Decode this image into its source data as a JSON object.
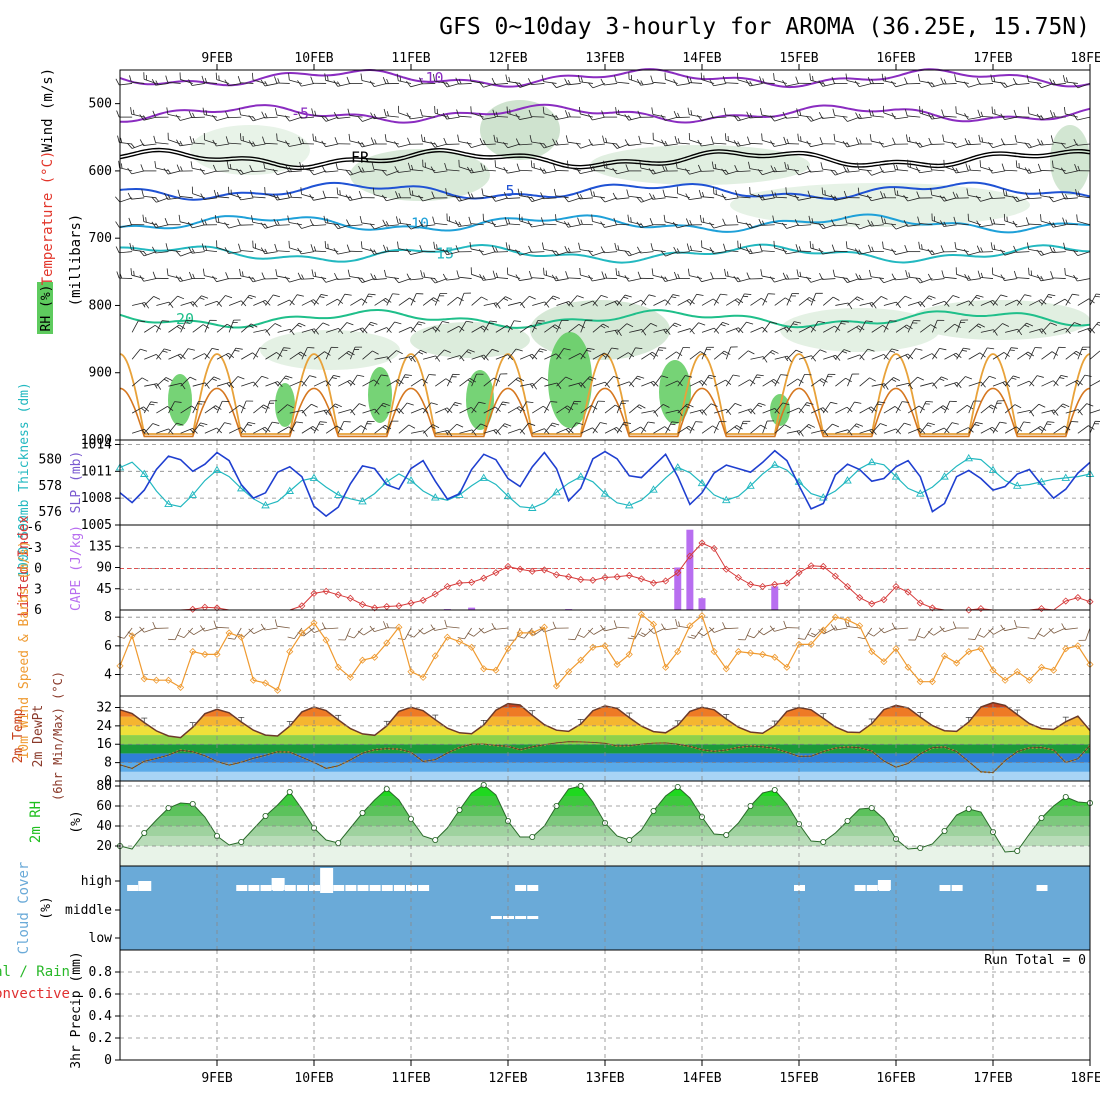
{
  "title": "GFS 0~10day 3-hourly for AROMA (36.25E, 15.75N)",
  "dates": [
    "9FEB",
    "10FEB",
    "11FEB",
    "12FEB",
    "13FEB",
    "14FEB",
    "15FEB",
    "16FEB",
    "17FEB",
    "18FEB"
  ],
  "colors": {
    "temp_label": "#e2362b",
    "wind_label": "#000000",
    "rh_green": "#5fcf5f",
    "slp": "#1f3fd0",
    "thickness": "#22b8c0",
    "cape": "#b86ef0",
    "li": "#d63a3a",
    "wind10": "#ef9a30",
    "rh2m": "#1fbf1f",
    "cloud": "#6aaad8"
  },
  "labels": {
    "upper_rh": "RH (%)",
    "upper_temp": "Temperature (°C)",
    "upper_wind": "Wind (m/s)",
    "upper_unit": "(millibars)",
    "thickness": "1000-500mb Thickness (dm)",
    "slp": "SLP (mb)",
    "li": "Lifted Index",
    "cape": "CAPE (J/kg)",
    "wind10": "10m Wind Speed & Barbs (m/s)",
    "temp2m_a": "2m Temp",
    "temp2m_b": "2m DewPt",
    "temp2m_c": "(6hr Min/Max) (°C)",
    "rh2m": "2m RH",
    "rh2m_unit": "(%)",
    "cloud": "Cloud Cover",
    "cloud_unit": "(%)",
    "precip_a": "Total / Rain",
    "precip_b": "Convective",
    "precip_c": "3hr Precip (mm)",
    "run_total": "Run Total = 0"
  },
  "chart_data": [
    {
      "panel": "upper_air",
      "type": "heatmap",
      "y_axis": {
        "label": "millibars",
        "ticks": [
          500,
          600,
          700,
          800,
          900,
          1000
        ],
        "range": [
          1000,
          450
        ]
      },
      "temperature_contours": [
        {
          "value": "-10",
          "pressure": 462
        },
        {
          "value": "-5",
          "pressure": 515
        },
        {
          "value": "FR",
          "pressure": 580
        },
        {
          "value": "5",
          "pressure": 630
        },
        {
          "value": "10",
          "pressure": 678
        },
        {
          "value": "15",
          "pressure": 723
        },
        {
          "value": "20",
          "pressure": 820
        }
      ]
    },
    {
      "panel": "thickness_slp",
      "type": "line",
      "x_labels": [
        "9FEB",
        "10FEB",
        "11FEB",
        "12FEB",
        "13FEB",
        "14FEB",
        "15FEB",
        "16FEB",
        "17FEB",
        "18FEB"
      ],
      "thickness": {
        "name": "1000-500mb Thickness (dm)",
        "ticks": [
          576,
          578,
          580
        ],
        "range": [
          575,
          581.5
        ],
        "values": [
          579.4,
          579.8,
          578.9,
          577.6,
          576.6,
          576.4,
          577.3,
          578.4,
          579.2,
          578.7,
          577.8,
          577.0,
          576.5,
          576.8,
          577.6,
          578.4,
          578.6,
          577.9,
          577.3,
          577.0,
          576.8,
          577.4,
          578.3,
          578.9,
          578.4,
          577.6,
          577.1,
          576.9,
          577.3,
          578.0,
          578.6,
          578.1,
          577.2,
          576.4,
          576.3,
          576.7,
          577.5,
          578.2,
          578.7,
          578.3,
          577.4,
          576.7,
          576.5,
          576.9,
          577.7,
          578.6,
          579.4,
          579.0,
          578.2,
          577.3,
          576.9,
          577.2,
          578.0,
          578.9,
          579.6,
          579.2,
          578.3,
          577.4,
          577.1,
          577.6,
          578.4,
          579.3,
          579.8,
          579.6,
          578.7,
          577.8,
          577.4,
          577.9,
          578.7,
          579.5,
          580.1,
          580.0,
          579.2,
          578.4,
          578.0,
          578.1,
          578.3,
          578.5,
          578.6,
          578.7,
          578.9
        ]
      },
      "slp": {
        "name": "SLP (mb)",
        "ticks": [
          1005,
          1008,
          1011,
          1014
        ],
        "range": [
          1005,
          1014.5
        ],
        "values": [
          1008.6,
          1007.5,
          1008.9,
          1011.2,
          1012.7,
          1012.3,
          1011.0,
          1011.8,
          1013.1,
          1012.2,
          1009.5,
          1008.0,
          1008.6,
          1010.9,
          1011.5,
          1010.4,
          1007.1,
          1006.0,
          1007.0,
          1009.6,
          1011.6,
          1011.3,
          1009.5,
          1009.0,
          1011.3,
          1012.2,
          1009.9,
          1007.9,
          1008.5,
          1011.2,
          1012.9,
          1012.3,
          1010.2,
          1009.3,
          1011.5,
          1013.1,
          1011.3,
          1007.7,
          1009.1,
          1012.4,
          1013.2,
          1012.4,
          1010.5,
          1010.3,
          1011.6,
          1012.9,
          1010.4,
          1007.3,
          1008.6,
          1010.8,
          1011.7,
          1011.3,
          1010.9,
          1012.0,
          1013.3,
          1012.2,
          1009.4,
          1006.8,
          1007.4,
          1010.6,
          1011.8,
          1011.2,
          1009.9,
          1010.2,
          1011.5,
          1012.2,
          1010.4,
          1006.5,
          1007.4,
          1010.4,
          1011.1,
          1010.2,
          1008.9,
          1009.3,
          1010.7,
          1011.2,
          1009.5,
          1008.0,
          1009.0,
          1010.8,
          1012.0
        ]
      }
    },
    {
      "panel": "li_cape",
      "type": "bar",
      "lifted_index": {
        "name": "Lifted Index",
        "ticks": [
          6,
          3,
          0,
          -3,
          -6
        ],
        "range": [
          6,
          -6.3
        ],
        "values": [
          6.4,
          6.5,
          6.4,
          6.2,
          6.6,
          6.8,
          5.9,
          5.6,
          5.7,
          6.1,
          6.4,
          6.3,
          6.2,
          6.5,
          6.6,
          5.4,
          3.6,
          3.3,
          3.8,
          4.3,
          5.2,
          5.7,
          5.5,
          5.4,
          5.0,
          4.6,
          3.7,
          2.6,
          2.1,
          2.0,
          1.4,
          0.6,
          -0.3,
          0.1,
          0.4,
          0.2,
          0.9,
          1.2,
          1.6,
          1.7,
          1.3,
          1.2,
          1.0,
          1.5,
          2.1,
          1.8,
          0.6,
          -1.8,
          -3.7,
          -2.9,
          0.1,
          1.3,
          2.3,
          2.6,
          2.3,
          2.1,
          0.6,
          -0.4,
          -0.3,
          1.1,
          2.6,
          4.2,
          5.1,
          4.5,
          2.6,
          3.4,
          5.0,
          5.7,
          6.3,
          6.2,
          6.0,
          5.8,
          6.2,
          6.3,
          6.4,
          6.4,
          5.8,
          6.2,
          4.7,
          4.2,
          4.8
        ]
      },
      "cape": {
        "name": "CAPE (J/kg)",
        "ticks": [
          45,
          90,
          135
        ],
        "range": [
          0,
          180
        ],
        "bars": [
          {
            "index": 27,
            "value": 2
          },
          {
            "index": 29,
            "value": 5
          },
          {
            "index": 37,
            "value": 2
          },
          {
            "index": 46,
            "value": 90
          },
          {
            "index": 47,
            "value": 170
          },
          {
            "index": 48,
            "value": 25
          },
          {
            "index": 54,
            "value": 50
          }
        ]
      }
    },
    {
      "panel": "wind10m",
      "type": "line",
      "y_axis": {
        "label": "(m/s)",
        "ticks": [
          4,
          6,
          8
        ],
        "range": [
          2.5,
          8.5
        ]
      },
      "values": [
        4.6,
        6.7,
        3.7,
        3.6,
        3.6,
        3.1,
        5.6,
        5.4,
        5.4,
        6.9,
        6.6,
        3.6,
        3.4,
        2.9,
        5.6,
        6.9,
        7.6,
        6.4,
        4.5,
        3.8,
        5.0,
        5.2,
        6.2,
        7.3,
        4.2,
        3.8,
        5.3,
        6.6,
        6.3,
        5.9,
        4.4,
        4.3,
        5.8,
        6.9,
        6.9,
        7.3,
        3.2,
        4.2,
        5.0,
        5.9,
        6.0,
        4.7,
        5.4,
        8.2,
        7.5,
        4.5,
        5.6,
        7.4,
        8.1,
        5.6,
        4.4,
        5.6,
        5.5,
        5.4,
        5.2,
        4.5,
        6.1,
        6.1,
        7.1,
        8.0,
        7.8,
        7.4,
        5.6,
        4.9,
        5.8,
        4.5,
        3.5,
        3.5,
        5.3,
        4.8,
        5.6,
        5.8,
        4.3,
        3.6,
        4.2,
        3.6,
        4.5,
        4.3,
        5.8,
        6.0,
        4.7
      ]
    },
    {
      "panel": "temp2m",
      "type": "area",
      "y_axis": {
        "ticks": [
          0,
          8,
          16,
          24,
          32
        ],
        "range": [
          0,
          37
        ]
      },
      "temperature": [
        31.0,
        29.4,
        25.4,
        21.8,
        19.6,
        18.9,
        23.4,
        29.3,
        31.2,
        29.7,
        25.7,
        22.1,
        20.0,
        19.6,
        23.9,
        30.1,
        32.2,
        30.7,
        26.6,
        22.8,
        20.5,
        19.9,
        24.0,
        30.3,
        32.1,
        30.6,
        26.7,
        23.0,
        21.0,
        20.6,
        24.4,
        30.8,
        33.7,
        33.1,
        28.6,
        24.5,
        22.1,
        21.6,
        24.8,
        30.6,
        32.7,
        31.6,
        27.6,
        23.9,
        21.5,
        21.0,
        24.2,
        30.3,
        32.1,
        31.0,
        27.0,
        23.4,
        21.3,
        20.8,
        24.1,
        30.3,
        32.0,
        31.0,
        27.3,
        23.5,
        21.3,
        21.1,
        25.0,
        31.1,
        32.9,
        31.8,
        27.8,
        24.1,
        21.9,
        21.6,
        25.7,
        32.2,
        34.1,
        32.9,
        28.9,
        25.0,
        22.8,
        22.4,
        25.8,
        28.2,
        22.0
      ],
      "dewpoint": [
        7.0,
        5.5,
        8.6,
        9.8,
        11.3,
        13.4,
        12.7,
        11.0,
        8.5,
        6.9,
        8.2,
        9.9,
        11.2,
        12.7,
        12.6,
        10.3,
        8.1,
        5.5,
        6.6,
        9.2,
        12.1,
        13.6,
        14.1,
        13.9,
        12.5,
        8.5,
        9.3,
        12.2,
        14.6,
        16.0,
        16.1,
        15.5,
        15.1,
        13.6,
        14.9,
        15.8,
        16.6,
        17.1,
        17.0,
        16.8,
        16.4,
        15.3,
        15.4,
        16.0,
        16.5,
        16.6,
        16.0,
        15.1,
        13.6,
        12.9,
        13.5,
        14.6,
        15.2,
        14.9,
        14.2,
        12.5,
        10.7,
        10.8,
        12.8,
        14.3,
        14.8,
        14.5,
        13.0,
        8.7,
        6.0,
        7.6,
        11.8,
        14.5,
        14.8,
        12.8,
        8.4,
        4.0,
        3.7,
        8.9,
        12.8,
        14.4,
        14.6,
        13.5,
        8.0,
        9.7,
        15.5
      ]
    },
    {
      "panel": "rh2m",
      "type": "area",
      "y_axis": {
        "ticks": [
          20,
          40,
          60,
          80
        ],
        "range": [
          0,
          85
        ]
      },
      "values": [
        20,
        17,
        33,
        46,
        58,
        63,
        62,
        49,
        30,
        21,
        24,
        37,
        50,
        61,
        74,
        57,
        38,
        26,
        23,
        38,
        53,
        66,
        77,
        66,
        47,
        30,
        26,
        38,
        56,
        73,
        81,
        71,
        45,
        29,
        29,
        40,
        60,
        77,
        80,
        64,
        43,
        30,
        26,
        36,
        55,
        70,
        79,
        68,
        49,
        32,
        31,
        43,
        60,
        73,
        76,
        62,
        42,
        25,
        24,
        33,
        45,
        57,
        58,
        47,
        27,
        17,
        18,
        22,
        35,
        51,
        57,
        54,
        34,
        14,
        15,
        32,
        48,
        60,
        69,
        64,
        63
      ]
    },
    {
      "panel": "cloud_cover",
      "type": "heatmap",
      "levels": [
        "high",
        "middle",
        "low"
      ],
      "high_cloud_indices": [
        1,
        10,
        11,
        12,
        13,
        14,
        15,
        16,
        17,
        18,
        19,
        20,
        21,
        22,
        23,
        24,
        25,
        33,
        34,
        56,
        61,
        62,
        63,
        68,
        69,
        76
      ],
      "middle_cloud_indices": [
        31,
        32,
        33,
        34
      ]
    },
    {
      "panel": "precip",
      "type": "bar",
      "y_axis": {
        "label": "3hr Precip (mm)",
        "ticks": [
          0,
          0.2,
          0.4,
          0.6,
          0.8
        ],
        "range": [
          0,
          1
        ]
      },
      "values": [],
      "run_total": "Run Total = 0"
    }
  ]
}
